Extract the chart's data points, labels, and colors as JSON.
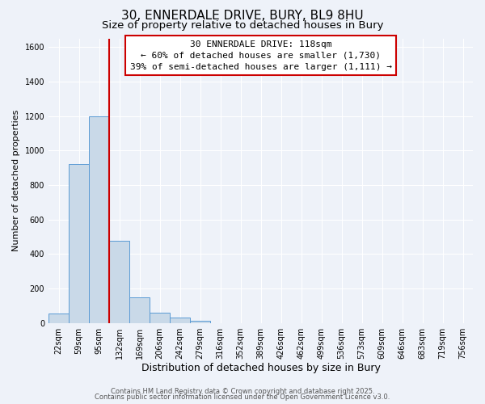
{
  "title": "30, ENNERDALE DRIVE, BURY, BL9 8HU",
  "subtitle": "Size of property relative to detached houses in Bury",
  "xlabel": "Distribution of detached houses by size in Bury",
  "ylabel": "Number of detached properties",
  "bar_labels": [
    "22sqm",
    "59sqm",
    "95sqm",
    "132sqm",
    "169sqm",
    "206sqm",
    "242sqm",
    "279sqm",
    "316sqm",
    "352sqm",
    "389sqm",
    "426sqm",
    "462sqm",
    "499sqm",
    "536sqm",
    "573sqm",
    "609sqm",
    "646sqm",
    "683sqm",
    "719sqm",
    "756sqm"
  ],
  "bar_values": [
    55,
    920,
    1200,
    475,
    150,
    60,
    30,
    15,
    0,
    0,
    0,
    0,
    0,
    0,
    0,
    0,
    0,
    0,
    0,
    0,
    0
  ],
  "bar_color": "#c9d9e8",
  "bar_edge_color": "#5b9bd5",
  "vline_x": 3.0,
  "vline_color": "#cc0000",
  "annotation_line1": "30 ENNERDALE DRIVE: 118sqm",
  "annotation_line2": "← 60% of detached houses are smaller (1,730)",
  "annotation_line3": "39% of semi-detached houses are larger (1,111) →",
  "ylim": [
    0,
    1650
  ],
  "yticks": [
    0,
    200,
    400,
    600,
    800,
    1000,
    1200,
    1400,
    1600
  ],
  "background_color": "#eef2f9",
  "grid_color": "#ffffff",
  "footer_line1": "Contains HM Land Registry data © Crown copyright and database right 2025.",
  "footer_line2": "Contains public sector information licensed under the Open Government Licence v3.0.",
  "title_fontsize": 11,
  "subtitle_fontsize": 9.5,
  "xlabel_fontsize": 9,
  "ylabel_fontsize": 8,
  "annot_fontsize": 8,
  "footer_fontsize": 6,
  "tick_fontsize": 7
}
